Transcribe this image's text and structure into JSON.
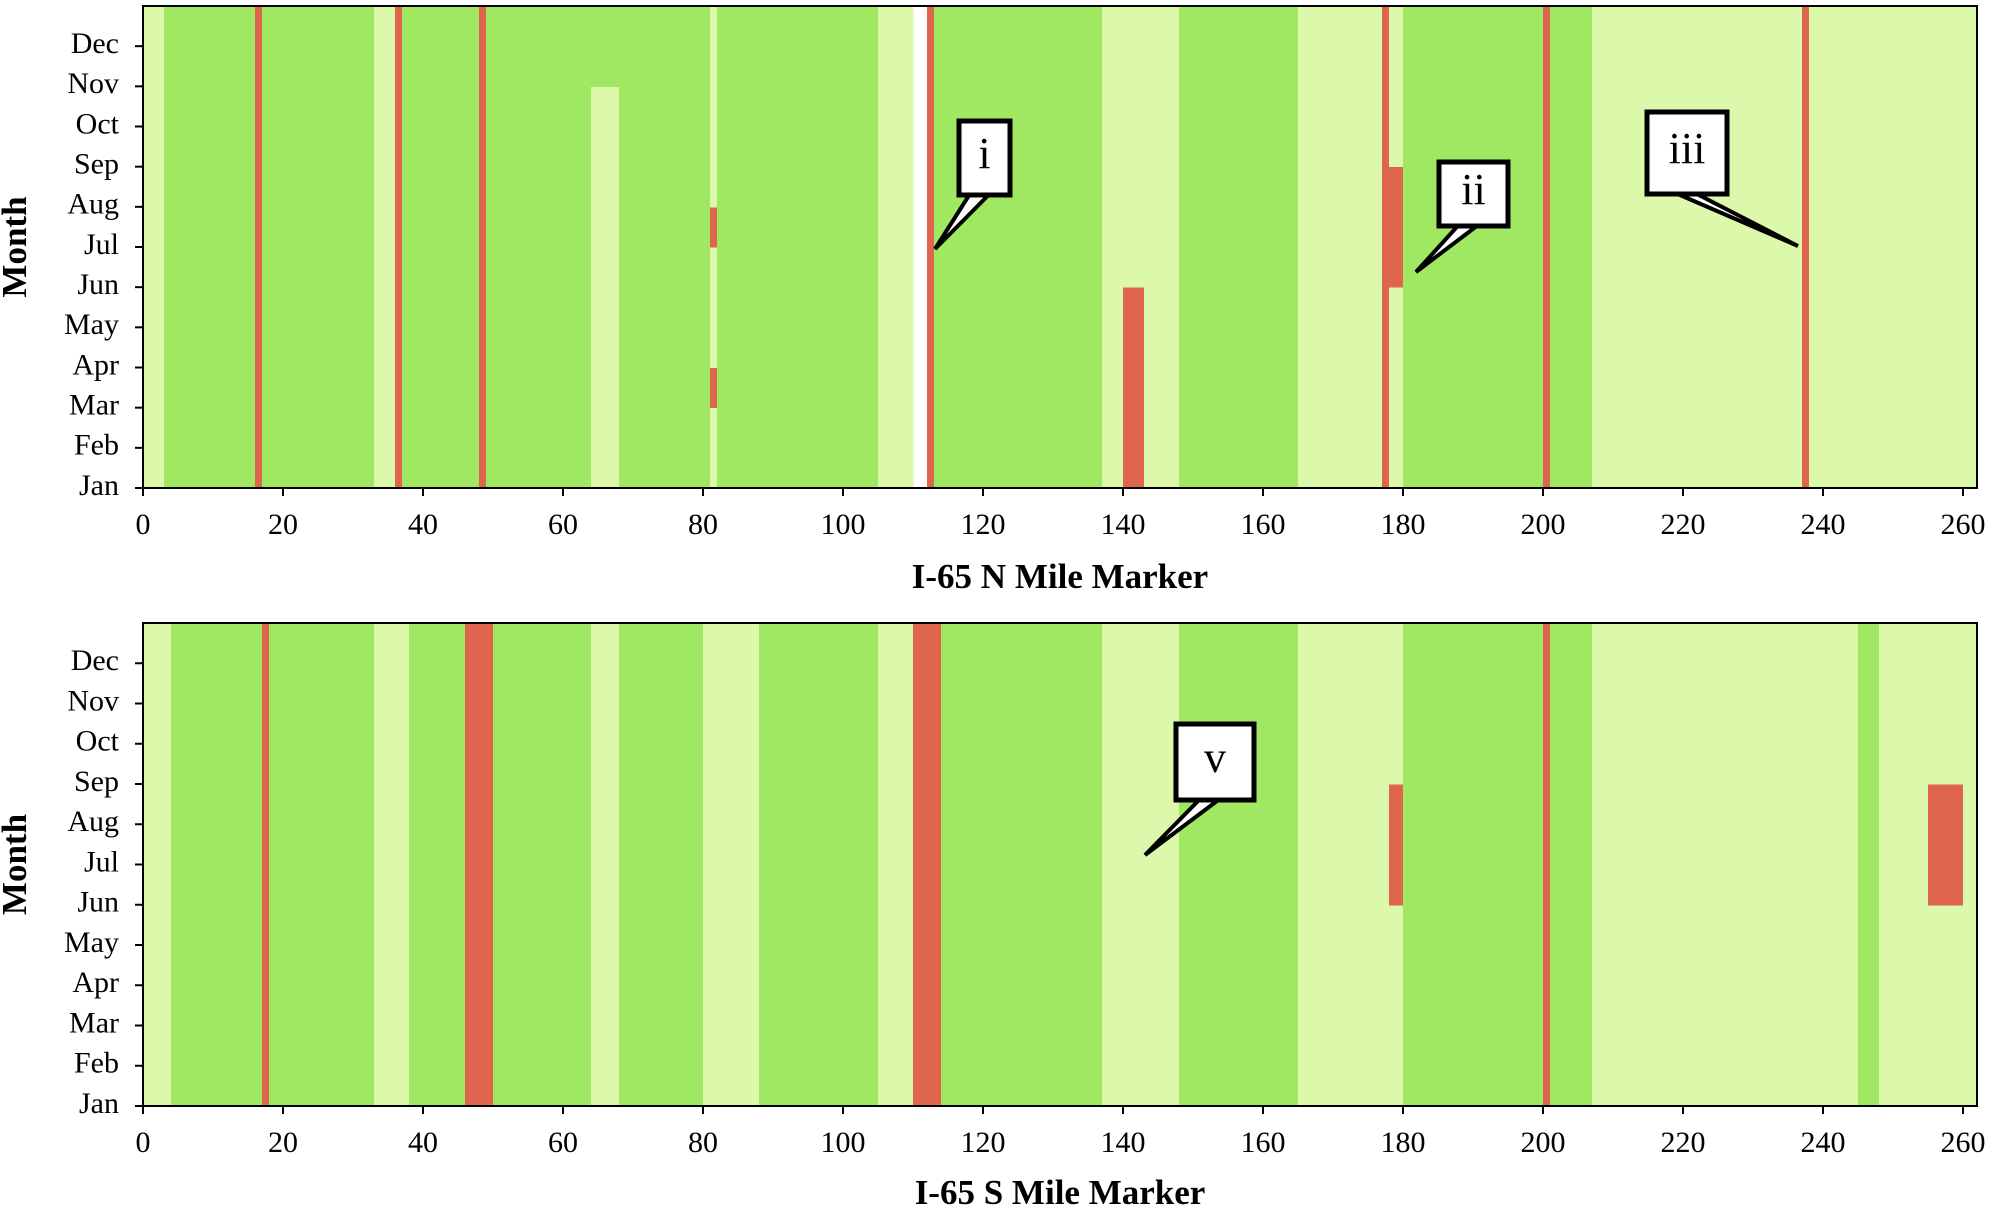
{
  "chart_data": [
    {
      "type": "heatmap",
      "xlabel": "I-65 N Mile Marker",
      "ylabel": "Month",
      "categories": [
        "Jan",
        "Feb",
        "Mar",
        "Apr",
        "May",
        "Jun",
        "Jul",
        "Aug",
        "Sep",
        "Oct",
        "Nov",
        "Dec"
      ],
      "bins": [
        0,
        3,
        16,
        17,
        33,
        36,
        37,
        48,
        49,
        64,
        68,
        81,
        82,
        105,
        110,
        112,
        113,
        137,
        140,
        143,
        148,
        165,
        177,
        178,
        180,
        200,
        201,
        207,
        237,
        238,
        262
      ],
      "values": [
        [
          1,
          0,
          2,
          0,
          1,
          2,
          0,
          2,
          0,
          1,
          0,
          1,
          0,
          1,
          null,
          2,
          0,
          1,
          2,
          1,
          0,
          1,
          2,
          1,
          0,
          2,
          0,
          1,
          2,
          1
        ],
        [
          1,
          0,
          2,
          0,
          1,
          2,
          0,
          2,
          0,
          1,
          0,
          1,
          0,
          1,
          null,
          2,
          0,
          1,
          2,
          1,
          0,
          1,
          2,
          1,
          0,
          2,
          0,
          1,
          2,
          1
        ],
        [
          1,
          0,
          2,
          0,
          1,
          2,
          0,
          2,
          0,
          1,
          0,
          2,
          0,
          1,
          null,
          2,
          0,
          1,
          2,
          1,
          0,
          1,
          2,
          1,
          0,
          2,
          0,
          1,
          2,
          1
        ],
        [
          1,
          0,
          2,
          0,
          1,
          2,
          0,
          2,
          0,
          1,
          0,
          1,
          0,
          1,
          null,
          2,
          0,
          1,
          2,
          1,
          0,
          1,
          2,
          1,
          0,
          2,
          0,
          1,
          2,
          1
        ],
        [
          1,
          0,
          2,
          0,
          1,
          2,
          0,
          2,
          0,
          1,
          0,
          1,
          0,
          1,
          null,
          2,
          0,
          1,
          2,
          1,
          0,
          1,
          2,
          1,
          0,
          2,
          0,
          1,
          2,
          1
        ],
        [
          1,
          0,
          2,
          0,
          1,
          2,
          0,
          2,
          0,
          1,
          0,
          1,
          0,
          1,
          null,
          2,
          0,
          1,
          1,
          1,
          0,
          1,
          2,
          2,
          0,
          2,
          0,
          1,
          2,
          1
        ],
        [
          1,
          0,
          2,
          0,
          1,
          2,
          0,
          2,
          0,
          1,
          0,
          2,
          0,
          1,
          null,
          2,
          0,
          1,
          1,
          1,
          0,
          1,
          2,
          2,
          0,
          2,
          0,
          1,
          2,
          1
        ],
        [
          1,
          0,
          2,
          0,
          1,
          2,
          0,
          2,
          0,
          1,
          0,
          1,
          0,
          1,
          null,
          2,
          0,
          1,
          1,
          1,
          0,
          1,
          2,
          2,
          0,
          2,
          0,
          1,
          2,
          1
        ],
        [
          1,
          0,
          2,
          0,
          1,
          2,
          0,
          2,
          0,
          1,
          0,
          1,
          0,
          1,
          null,
          2,
          0,
          1,
          1,
          1,
          0,
          1,
          2,
          1,
          0,
          2,
          0,
          1,
          2,
          1
        ],
        [
          1,
          0,
          2,
          0,
          1,
          2,
          0,
          2,
          0,
          1,
          0,
          1,
          0,
          1,
          null,
          2,
          0,
          1,
          1,
          1,
          0,
          1,
          2,
          1,
          0,
          2,
          0,
          1,
          2,
          1
        ],
        [
          1,
          0,
          2,
          0,
          1,
          2,
          0,
          2,
          0,
          0,
          0,
          1,
          0,
          1,
          null,
          2,
          0,
          1,
          1,
          1,
          0,
          1,
          2,
          1,
          0,
          2,
          0,
          1,
          2,
          1
        ],
        [
          1,
          0,
          2,
          0,
          1,
          2,
          0,
          2,
          0,
          0,
          0,
          1,
          0,
          1,
          null,
          2,
          0,
          1,
          1,
          1,
          0,
          1,
          2,
          1,
          0,
          2,
          0,
          1,
          2,
          1
        ]
      ],
      "colors": [
        "#a1e862",
        "#dbf8ab",
        "#e0654f"
      ],
      "xlim": [
        0,
        262
      ],
      "xticks": [
        0,
        20,
        40,
        60,
        80,
        100,
        120,
        140,
        160,
        180,
        200,
        220,
        240,
        260
      ],
      "annotations": [
        "i",
        "ii",
        "iii"
      ]
    },
    {
      "type": "heatmap",
      "xlabel": "I-65 S Mile Marker",
      "ylabel": "Month",
      "categories": [
        "Jan",
        "Feb",
        "Mar",
        "Apr",
        "May",
        "Jun",
        "Jul",
        "Aug",
        "Sep",
        "Oct",
        "Nov",
        "Dec"
      ],
      "bins": [
        0,
        4,
        17,
        18,
        33,
        38,
        46,
        50,
        64,
        68,
        80,
        88,
        105,
        110,
        114,
        137,
        148,
        165,
        178,
        180,
        200,
        201,
        207,
        245,
        248,
        255,
        260,
        262
      ],
      "values": [
        [
          1,
          0,
          2,
          0,
          1,
          0,
          2,
          0,
          1,
          0,
          1,
          0,
          1,
          2,
          0,
          1,
          0,
          1,
          1,
          0,
          2,
          0,
          1,
          0,
          1,
          1,
          1
        ],
        [
          1,
          0,
          2,
          0,
          1,
          0,
          2,
          0,
          1,
          0,
          1,
          0,
          1,
          2,
          0,
          1,
          0,
          1,
          1,
          0,
          2,
          0,
          1,
          0,
          1,
          1,
          1
        ],
        [
          1,
          0,
          2,
          0,
          1,
          0,
          2,
          0,
          1,
          0,
          1,
          0,
          1,
          2,
          0,
          1,
          0,
          1,
          1,
          0,
          2,
          0,
          1,
          0,
          1,
          1,
          1
        ],
        [
          1,
          0,
          2,
          0,
          1,
          0,
          2,
          0,
          1,
          0,
          1,
          0,
          1,
          2,
          0,
          1,
          0,
          1,
          1,
          0,
          2,
          0,
          1,
          0,
          1,
          1,
          1
        ],
        [
          1,
          0,
          2,
          0,
          1,
          0,
          2,
          0,
          1,
          0,
          1,
          0,
          1,
          2,
          0,
          1,
          0,
          1,
          1,
          0,
          2,
          0,
          1,
          0,
          1,
          1,
          1
        ],
        [
          1,
          0,
          2,
          0,
          1,
          0,
          2,
          0,
          1,
          0,
          1,
          0,
          1,
          2,
          0,
          1,
          0,
          1,
          2,
          0,
          2,
          0,
          1,
          0,
          1,
          2,
          1
        ],
        [
          1,
          0,
          2,
          0,
          1,
          0,
          2,
          0,
          1,
          0,
          1,
          0,
          1,
          2,
          0,
          1,
          0,
          1,
          2,
          0,
          2,
          0,
          1,
          0,
          1,
          2,
          1
        ],
        [
          1,
          0,
          2,
          0,
          1,
          0,
          2,
          0,
          1,
          0,
          1,
          0,
          1,
          2,
          0,
          1,
          0,
          1,
          2,
          0,
          2,
          0,
          1,
          0,
          1,
          2,
          1
        ],
        [
          1,
          0,
          2,
          0,
          1,
          0,
          2,
          0,
          1,
          0,
          1,
          0,
          1,
          2,
          0,
          1,
          0,
          1,
          1,
          0,
          2,
          0,
          1,
          0,
          1,
          1,
          1
        ],
        [
          1,
          0,
          2,
          0,
          1,
          0,
          2,
          0,
          1,
          0,
          1,
          0,
          1,
          2,
          0,
          1,
          0,
          1,
          1,
          0,
          2,
          0,
          1,
          0,
          1,
          1,
          1
        ],
        [
          1,
          0,
          2,
          0,
          1,
          0,
          2,
          0,
          1,
          0,
          1,
          0,
          1,
          2,
          0,
          1,
          0,
          1,
          1,
          0,
          2,
          0,
          1,
          0,
          1,
          1,
          1
        ],
        [
          1,
          0,
          2,
          0,
          1,
          0,
          2,
          0,
          1,
          0,
          1,
          0,
          1,
          2,
          0,
          1,
          0,
          1,
          1,
          0,
          2,
          0,
          1,
          0,
          1,
          1,
          1
        ]
      ],
      "colors": [
        "#a1e862",
        "#dbf8ab",
        "#e0654f"
      ],
      "xlim": [
        0,
        262
      ],
      "xticks": [
        0,
        20,
        40,
        60,
        80,
        100,
        120,
        140,
        160,
        180,
        200,
        220,
        240,
        260
      ],
      "annotations": [
        "v"
      ]
    }
  ]
}
